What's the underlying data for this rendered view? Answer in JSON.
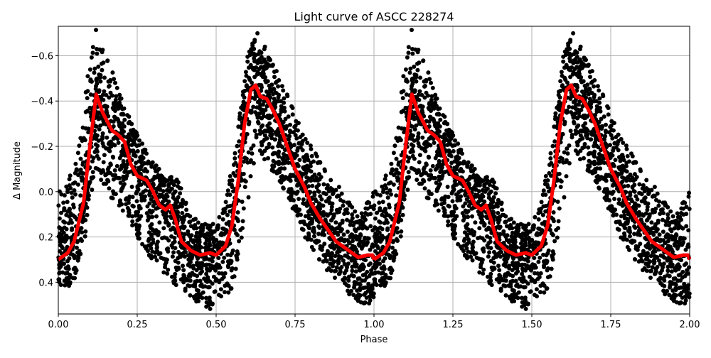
{
  "chart_data": {
    "type": "scatter",
    "title": "Light curve of ASCC 228274",
    "xlabel": "Phase",
    "ylabel": "Δ Magnitude",
    "xlim": [
      0,
      2
    ],
    "ylim": [
      0.54,
      -0.73
    ],
    "y_inverted": true,
    "grid": true,
    "x_ticks": [
      "0.00",
      "0.25",
      "0.50",
      "0.75",
      "1.00",
      "1.25",
      "1.50",
      "1.75",
      "2.00"
    ],
    "y_ticks": [
      "−0.6",
      "−0.4",
      "−0.2",
      "0.0",
      "0.2",
      "0.4"
    ],
    "y_tick_values": [
      -0.6,
      -0.4,
      -0.2,
      0.0,
      0.2,
      0.4
    ],
    "colors": {
      "points": "#000000",
      "fit": "#ff0000",
      "grid": "#b0b0b0"
    },
    "phase_repeats": 2,
    "fit_curve": {
      "phase": [
        0,
        0.03,
        0.05,
        0.08,
        0.1,
        0.12,
        0.14,
        0.17,
        0.19,
        0.21,
        0.23,
        0.25,
        0.28,
        0.3,
        0.32,
        0.34,
        0.355,
        0.37,
        0.39,
        0.42,
        0.45,
        0.48,
        0.5,
        0.53,
        0.55,
        0.57,
        0.59,
        0.61,
        0.625,
        0.64,
        0.66,
        0.68,
        0.7,
        0.72,
        0.75,
        0.78,
        0.8,
        0.83,
        0.86,
        0.88,
        0.9,
        0.93,
        0.95,
        0.98,
        0.995,
        1.0
      ],
      "magnitude": [
        0.3,
        0.27,
        0.22,
        0.05,
        -0.2,
        -0.43,
        -0.35,
        -0.27,
        -0.25,
        -0.22,
        -0.12,
        -0.07,
        -0.05,
        0.0,
        0.06,
        0.08,
        0.06,
        0.12,
        0.22,
        0.26,
        0.28,
        0.27,
        0.28,
        0.24,
        0.15,
        -0.05,
        -0.3,
        -0.45,
        -0.47,
        -0.42,
        -0.41,
        -0.36,
        -0.3,
        -0.22,
        -0.1,
        -0.02,
        0.05,
        0.12,
        0.18,
        0.22,
        0.24,
        0.27,
        0.29,
        0.28,
        0.28,
        0.3
      ]
    },
    "observations_envelope": {
      "phase": [
        0,
        0.05,
        0.08,
        0.1,
        0.12,
        0.15,
        0.18,
        0.22,
        0.27,
        0.32,
        0.38,
        0.42,
        0.48,
        0.52,
        0.56,
        0.6,
        0.63,
        0.67,
        0.72,
        0.78,
        0.85,
        0.9,
        0.95,
        1.0
      ],
      "brightest": [
        0.0,
        -0.1,
        -0.35,
        -0.6,
        -0.72,
        -0.6,
        -0.5,
        -0.35,
        -0.2,
        -0.1,
        -0.05,
        0.1,
        0.15,
        0.1,
        -0.2,
        -0.6,
        -0.73,
        -0.6,
        -0.45,
        -0.25,
        -0.1,
        0.0,
        0.1,
        0.0
      ],
      "faintest": [
        0.45,
        0.4,
        0.25,
        0.05,
        -0.1,
        0.0,
        0.05,
        0.12,
        0.25,
        0.35,
        0.42,
        0.47,
        0.53,
        0.5,
        0.4,
        0.05,
        -0.2,
        -0.1,
        0.0,
        0.2,
        0.35,
        0.42,
        0.5,
        0.5
      ]
    }
  }
}
